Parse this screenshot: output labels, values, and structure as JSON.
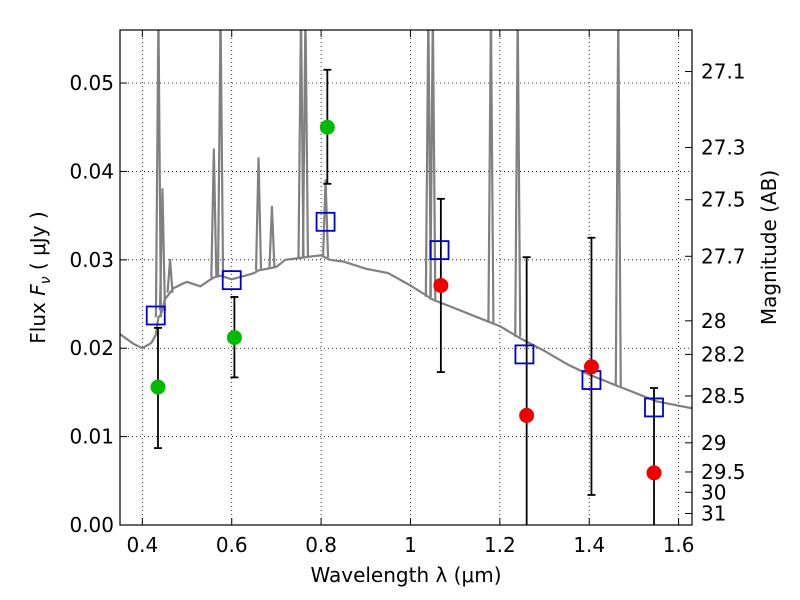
{
  "chart_data": {
    "type": "scatter",
    "xlabel": "Wavelength  λ (μm)",
    "ylabel": "Flux  F_ν  ( μJy )",
    "y2label": "Magnitude (AB)",
    "xlim": [
      0.35,
      1.63
    ],
    "ylim": [
      0.0,
      0.056
    ],
    "grid": true,
    "x_ticks": [
      0.4,
      0.6,
      0.8,
      1.0,
      1.2,
      1.4,
      1.6
    ],
    "x_tick_labels": [
      "0.4",
      "0.6",
      "0.8",
      "1",
      "1.2",
      "1.4",
      "1.6"
    ],
    "y_ticks": [
      0.0,
      0.01,
      0.02,
      0.03,
      0.04,
      0.05
    ],
    "y_tick_labels": [
      "0.00",
      "0.01",
      "0.02",
      "0.03",
      "0.04",
      "0.05"
    ],
    "y2_ticks": [
      {
        "label": "27.1",
        "flux": 0.0513
      },
      {
        "label": "27.3",
        "flux": 0.0427
      },
      {
        "label": "27.5",
        "flux": 0.0368
      },
      {
        "label": "27.7",
        "flux": 0.0304
      },
      {
        "label": "28",
        "flux": 0.0231
      },
      {
        "label": "28.2",
        "flux": 0.0193
      },
      {
        "label": "28.5",
        "flux": 0.0146
      },
      {
        "label": "29",
        "flux": 0.0093
      },
      {
        "label": "29.5",
        "flux": 0.006
      },
      {
        "label": "30",
        "flux": 0.0037
      },
      {
        "label": "31",
        "flux": 0.0013
      }
    ],
    "series": [
      {
        "kind": "model",
        "color": "#808080",
        "x": [
          0.35,
          0.38,
          0.4,
          0.42,
          0.43,
          0.436,
          0.44,
          0.445,
          0.45,
          0.47,
          0.49,
          0.5,
          0.53,
          0.55,
          0.56,
          0.575,
          0.6,
          0.63,
          0.65,
          0.66,
          0.7,
          0.72,
          0.75,
          0.78,
          0.8,
          0.82,
          0.85,
          0.9,
          0.95,
          1.0,
          1.05,
          1.1,
          1.15,
          1.2,
          1.25,
          1.3,
          1.35,
          1.4,
          1.45,
          1.5,
          1.55,
          1.6,
          1.63
        ],
        "y": [
          0.0216,
          0.0205,
          0.02,
          0.0206,
          0.0215,
          0.0235,
          0.0237,
          0.0243,
          0.0255,
          0.0268,
          0.0273,
          0.0275,
          0.027,
          0.0277,
          0.028,
          0.0282,
          0.0278,
          0.0282,
          0.0285,
          0.0288,
          0.0292,
          0.03,
          0.0302,
          0.0304,
          0.0305,
          0.03,
          0.0298,
          0.029,
          0.0285,
          0.0271,
          0.0255,
          0.0245,
          0.0235,
          0.0225,
          0.021,
          0.0197,
          0.0182,
          0.017,
          0.016,
          0.015,
          0.014,
          0.0135,
          0.0132
        ],
        "lines": [
          {
            "x": 0.436,
            "peak": 0.058
          },
          {
            "x": 0.445,
            "peak": 0.038
          },
          {
            "x": 0.462,
            "peak": 0.03
          },
          {
            "x": 0.56,
            "peak": 0.0425
          },
          {
            "x": 0.575,
            "peak": 0.058
          },
          {
            "x": 0.66,
            "peak": 0.0415
          },
          {
            "x": 0.69,
            "peak": 0.036
          },
          {
            "x": 0.755,
            "peak": 0.058
          },
          {
            "x": 0.765,
            "peak": 0.058
          },
          {
            "x": 0.81,
            "peak": 0.039
          },
          {
            "x": 1.04,
            "peak": 0.058
          },
          {
            "x": 1.05,
            "peak": 0.058
          },
          {
            "x": 1.18,
            "peak": 0.058
          },
          {
            "x": 1.24,
            "peak": 0.058
          },
          {
            "x": 1.465,
            "peak": 0.058
          }
        ]
      },
      {
        "kind": "observed",
        "color": "#00bb00",
        "x": [
          0.435,
          0.606,
          0.814
        ],
        "y": [
          0.0156,
          0.0212,
          0.045
        ],
        "err_low": [
          0.0087,
          0.0167,
          0.0386
        ],
        "err_high": [
          0.0223,
          0.0258,
          0.0515
        ]
      },
      {
        "kind": "observed",
        "color": "#ee0000",
        "x": [
          1.068,
          1.26,
          1.405,
          1.545
        ],
        "y": [
          0.0271,
          0.0124,
          0.0179,
          0.0059
        ],
        "err_low": [
          0.0173,
          0.0,
          0.0034,
          0.0
        ],
        "err_high": [
          0.0369,
          0.0303,
          0.0325,
          0.0155
        ]
      },
      {
        "kind": "synthetic",
        "color": "#0000cc",
        "x": [
          0.43,
          0.6,
          0.81,
          1.065,
          1.255,
          1.405,
          1.545
        ],
        "y": [
          0.0237,
          0.0277,
          0.0343,
          0.0311,
          0.0193,
          0.0164,
          0.0133
        ]
      }
    ]
  }
}
